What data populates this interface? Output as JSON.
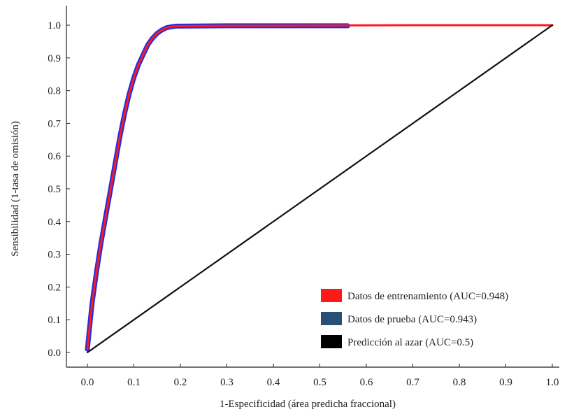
{
  "chart_data": {
    "type": "line",
    "title": "",
    "xlabel": "1-Especificidad (área predicha fraccional)",
    "ylabel": "Sensibilidad (1-tasa de omisión)",
    "xlim": [
      0.0,
      1.0
    ],
    "ylim": [
      0.0,
      1.0
    ],
    "x_ticks": [
      "0.0",
      "0.1",
      "0.2",
      "0.3",
      "0.4",
      "0.5",
      "0.6",
      "0.7",
      "0.8",
      "0.9",
      "1.0"
    ],
    "y_ticks": [
      "0.0",
      "0.1",
      "0.2",
      "0.3",
      "0.4",
      "0.5",
      "0.6",
      "0.7",
      "0.8",
      "0.9",
      "1.0"
    ],
    "grid": false,
    "legend_position": "bottom-right",
    "series": [
      {
        "name": "Datos de entrenamiento (AUC=0.948)",
        "color": "#ff1a1a",
        "x": [
          0.0,
          0.005,
          0.01,
          0.02,
          0.03,
          0.04,
          0.05,
          0.06,
          0.07,
          0.08,
          0.09,
          0.1,
          0.11,
          0.12,
          0.13,
          0.14,
          0.15,
          0.16,
          0.17,
          0.18,
          0.19,
          0.3,
          0.5,
          0.7,
          1.0
        ],
        "y": [
          0.01,
          0.08,
          0.15,
          0.25,
          0.34,
          0.42,
          0.5,
          0.58,
          0.66,
          0.73,
          0.79,
          0.84,
          0.88,
          0.91,
          0.94,
          0.96,
          0.975,
          0.985,
          0.992,
          0.995,
          0.997,
          0.998,
          0.999,
          1.0,
          1.0
        ]
      },
      {
        "name": "Datos de prueba (AUC=0.943)",
        "color": "#1f2ee6",
        "x": [
          0.0,
          0.005,
          0.01,
          0.02,
          0.03,
          0.04,
          0.05,
          0.06,
          0.07,
          0.08,
          0.09,
          0.1,
          0.11,
          0.12,
          0.13,
          0.14,
          0.15,
          0.16,
          0.17,
          0.18,
          0.19,
          0.3,
          0.5,
          0.56
        ],
        "y": [
          0.01,
          0.08,
          0.15,
          0.25,
          0.34,
          0.42,
          0.5,
          0.58,
          0.66,
          0.73,
          0.79,
          0.84,
          0.88,
          0.91,
          0.94,
          0.96,
          0.975,
          0.985,
          0.992,
          0.995,
          0.997,
          0.998,
          0.998,
          0.998
        ]
      },
      {
        "name": "Predicción al azar (AUC=0.5)",
        "color": "#111111",
        "x": [
          0.0,
          1.0
        ],
        "y": [
          0.0,
          1.0
        ]
      }
    ]
  }
}
